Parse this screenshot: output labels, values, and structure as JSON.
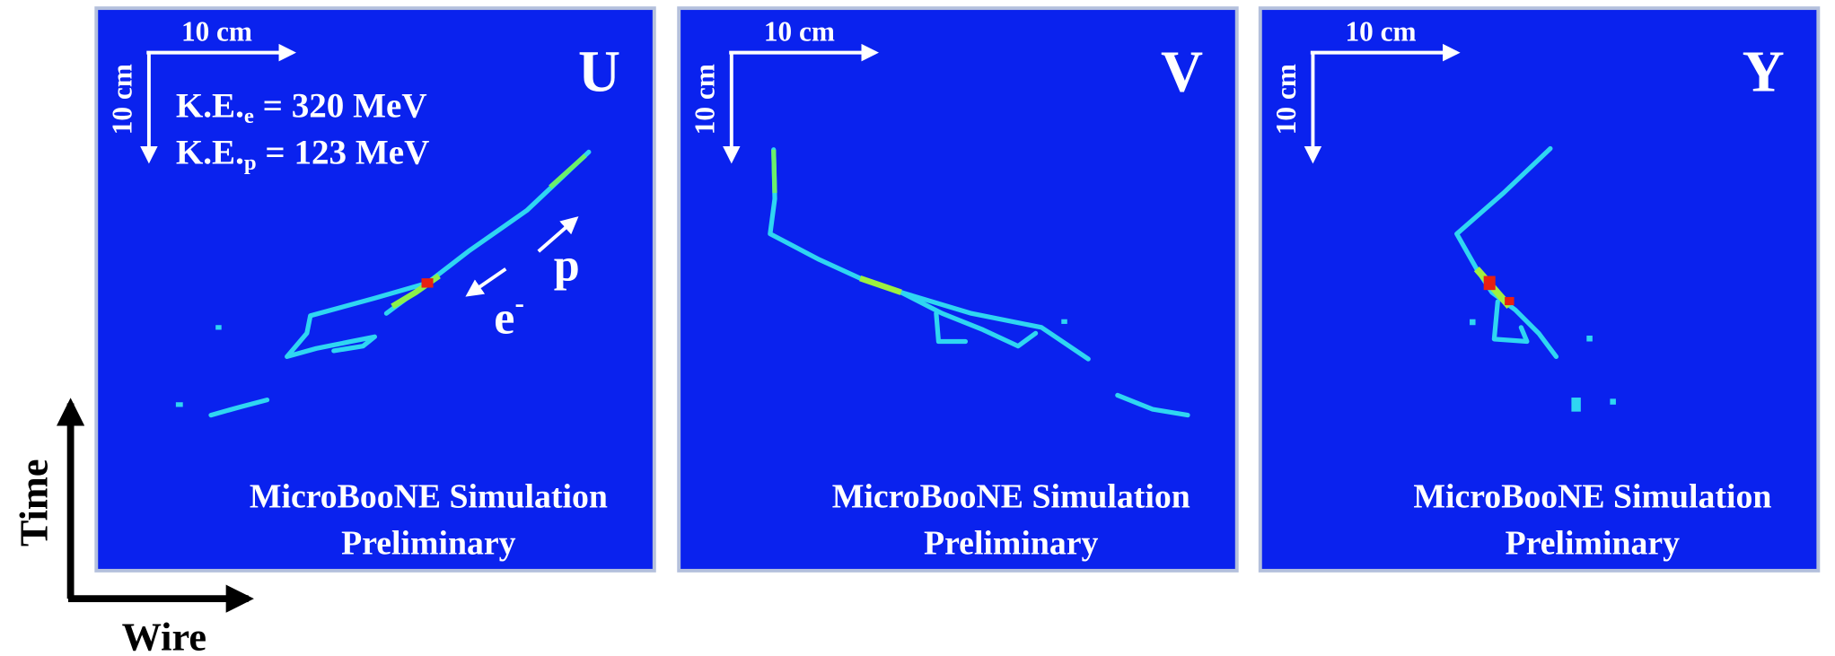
{
  "panels": [
    {
      "plane": "U",
      "scale_x": "10 cm",
      "scale_y": "10 cm",
      "watermark": [
        "MicroBooNE Simulation",
        "Preliminary"
      ]
    },
    {
      "plane": "V",
      "scale_x": "10 cm",
      "scale_y": "10 cm",
      "watermark": [
        "MicroBooNE Simulation",
        "Preliminary"
      ]
    },
    {
      "plane": "Y",
      "scale_x": "10 cm",
      "scale_y": "10 cm",
      "watermark": [
        "MicroBooNE Simulation",
        "Preliminary"
      ]
    }
  ],
  "annotations": {
    "ke_e": {
      "prefix": "K.E.",
      "sub": "e",
      "rest": " = 320 MeV"
    },
    "ke_p": {
      "prefix": "K.E.",
      "sub": "p",
      "rest": " = 123 MeV"
    },
    "proton": "p",
    "electron": {
      "base": "e",
      "sup": "-"
    }
  },
  "axes": {
    "time": "Time",
    "wire": "Wire"
  }
}
